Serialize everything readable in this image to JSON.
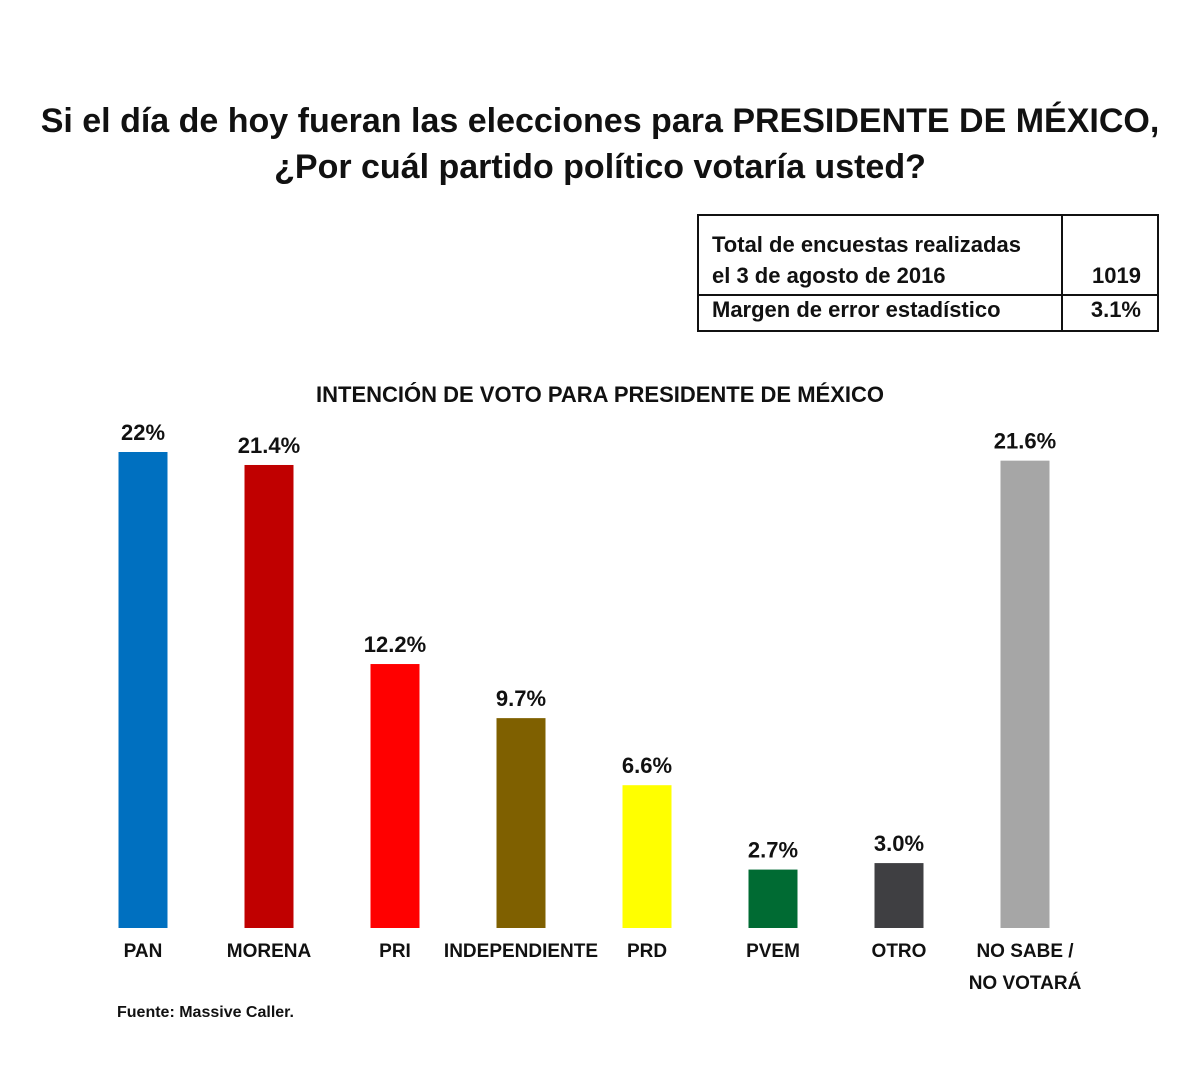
{
  "title": {
    "line1": "Si el día de hoy fueran las elecciones para PRESIDENTE DE MÉXICO,",
    "line2": "¿Por cuál partido político votaría usted?"
  },
  "info_table": {
    "row1_label_a": "Total de encuestas realizadas",
    "row1_label_b": "el 3 de agosto de 2016",
    "row1_value": "1019",
    "row2_label": "Margen de error estadístico",
    "row2_value": "3.1%"
  },
  "chart_data": {
    "type": "bar",
    "title": "INTENCIÓN DE VOTO PARA PRESIDENTE DE MÉXICO",
    "categories": [
      "PAN",
      "MORENA",
      "PRI",
      "INDEPENDIENTE",
      "PRD",
      "PVEM",
      "OTRO",
      "NO SABE / NO VOTARÁ"
    ],
    "values": [
      22,
      21.4,
      12.2,
      9.7,
      6.6,
      2.7,
      3.0,
      21.6
    ],
    "data_labels": [
      "22%",
      "21.4%",
      "12.2%",
      "9.7%",
      "6.6%",
      "2.7%",
      "3.0%",
      "21.6%"
    ],
    "colors": [
      "#0070C0",
      "#C00000",
      "#FF0000",
      "#7F6000",
      "#FFFF00",
      "#006B33",
      "#3F3F42",
      "#A6A6A6"
    ],
    "xlabel": "",
    "ylabel": "",
    "grid": false,
    "legend": "none"
  },
  "source": "Fuente: Massive Caller."
}
